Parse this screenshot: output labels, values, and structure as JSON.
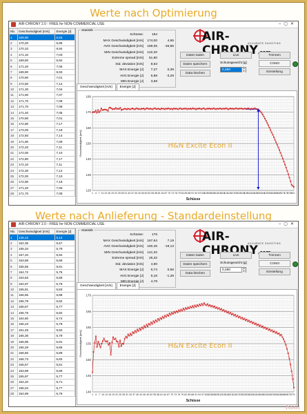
{
  "heading_top": "Werte nach Optimierung",
  "heading_bottom": "Werte nach Anlieferung - Standardeinstellung",
  "watermark": "Rodi",
  "windows": [
    {
      "title": "AIR-CHRONY 2.0 - FREE for NON-COMMERCIAL USE",
      "table": {
        "headers": [
          "Nb.",
          "Geschwindigkeit [m/s]",
          "Energie [J]"
        ],
        "rows": [
          [
            "1",
            "169,90",
            "6,93"
          ],
          [
            "2",
            "170,20",
            "6,95"
          ],
          [
            "3",
            "170,10",
            "6,94"
          ],
          [
            "4",
            "171,10",
            "7,03"
          ],
          [
            "5",
            "169,60",
            "6,92"
          ],
          [
            "6",
            "171,40",
            "7,05"
          ],
          [
            "7",
            "169,90",
            "6,93"
          ],
          [
            "8",
            "170,90",
            "7,01"
          ],
          [
            "9",
            "172,50",
            "7,14"
          ],
          [
            "10",
            "171,30",
            "7,04"
          ],
          [
            "11",
            "171,60",
            "7,07"
          ],
          [
            "12",
            "171,70",
            "7,08"
          ],
          [
            "13",
            "171,70",
            "7,08"
          ],
          [
            "14",
            "171,40",
            "7,05"
          ],
          [
            "15",
            "170,90",
            "7,01"
          ],
          [
            "16",
            "172,80",
            "7,17"
          ],
          [
            "17",
            "173,00",
            "7,18"
          ],
          [
            "18",
            "172,50",
            "7,14"
          ],
          [
            "19",
            "171,90",
            "7,09"
          ],
          [
            "20",
            "172,20",
            "7,11"
          ],
          [
            "21",
            "172,00",
            "7,10"
          ],
          [
            "22",
            "172,80",
            "7,17"
          ],
          [
            "23",
            "172,10",
            "7,11"
          ],
          [
            "24",
            "172,30",
            "7,12"
          ],
          [
            "25",
            "172,00",
            "7,10"
          ],
          [
            "26",
            "172,90",
            "7,18"
          ],
          [
            "27",
            "171,40",
            "7,05"
          ],
          [
            "28",
            "171,70",
            "7,08"
          ]
        ]
      },
      "stats": {
        "legend": "Statistik",
        "rows": [
          {
            "label": "Schüsse:",
            "value": "184",
            "extra": ""
          },
          {
            "label": "MAX Geschwindigkeit [m/s]",
            "value": "174,00",
            "extra": "4,95"
          },
          {
            "label": "AVG Geschwindigkeit [m/s]",
            "value": "169,05",
            "extra": "-46,85"
          },
          {
            "label": "MIN Geschwindigkeit [m/s]",
            "value": "122,20",
            "extra": ""
          },
          {
            "label": "Extreme spread [m/s]",
            "value": "51,80",
            "extra": ""
          },
          {
            "label": "Std. deviation [m/s]",
            "value": "8,63",
            "extra": ""
          },
          {
            "label": "MAX Energie [J]",
            "value": "7,27",
            "extra": "0,39"
          },
          {
            "label": "AVG Energie [J]",
            "value": "6,88",
            "extra": "-3,29"
          },
          {
            "label": "MIN Energie [J]",
            "value": "3,59",
            "extra": ""
          }
        ]
      },
      "buttons": {
        "load": "Daten laden",
        "save": "Daten speichern",
        "delete": "Data löschen",
        "live": "Live",
        "disconnect": "Trennen",
        "com": "COM3",
        "settings": "Einstellung"
      },
      "weight_label": "Schussgewicht [g]",
      "weight_value": "0,480",
      "tabs": [
        "Geschwindigkeit [m/s]",
        "Energie [J]"
      ],
      "chart_data": {
        "type": "line",
        "title": "H&N Excite Econ II",
        "xlabel": "Schüsse",
        "ylabel": "Geschwindigkeit [m/s]",
        "ylim": [
          120,
          180
        ],
        "yticks": [
          120,
          130,
          140,
          150,
          160,
          170,
          180
        ],
        "x_range": [
          1,
          184
        ],
        "series": [
          {
            "values": [
              169.9,
              170.2,
              170.1,
              171.1,
              169.6,
              171.4,
              169.9,
              170.9,
              172.5,
              171.3,
              171.6,
              171.7,
              171.7,
              171.4,
              170.9,
              172.8,
              173.0,
              172.5,
              171.9,
              172.2,
              172.0,
              172.8,
              172.1,
              172.3,
              172.0,
              172.9,
              171.4,
              171.7,
              172.0,
              172.3,
              172.1,
              171.8,
              172.4,
              172.0,
              171.9,
              172.2,
              172.5,
              172.1,
              171.8,
              172.3,
              172.6,
              172.0,
              172.2,
              171.9,
              172.4,
              172.1,
              172.5,
              171.8,
              172.2,
              172.6,
              172.3,
              172.0,
              172.4,
              172.1,
              171.9,
              172.3,
              172.6,
              172.2,
              172.0,
              172.4,
              172.1,
              171.8,
              172.5,
              172.2,
              172.3,
              171.9,
              172.4,
              172.1,
              172.6,
              172.2,
              172.0,
              172.3,
              171.8,
              172.5,
              172.1,
              172.4,
              172.2,
              171.9,
              172.3,
              172.6,
              172.1,
              172.0,
              172.4,
              172.2,
              172.5,
              171.9,
              172.3,
              172.1,
              172.4,
              172.0,
              172.6,
              172.2,
              172.3,
              171.8,
              172.4,
              172.1,
              172.5,
              172.2,
              172.0,
              172.3,
              172.6,
              172.1,
              171.9,
              172.4,
              172.2,
              172.5,
              172.0,
              172.3,
              172.1,
              172.6,
              172.2,
              171.9,
              172.4,
              172.1,
              172.3,
              172.5,
              172.0,
              172.2,
              172.4,
              172.1,
              172.6,
              172.3,
              171.8,
              172.2,
              172.5,
              172.1,
              172.4,
              172.0,
              172.3,
              172.6,
              172.2,
              172.1,
              172.4,
              172.3,
              172.5,
              172.0,
              172.2,
              172.4,
              172.1,
              172.3,
              172.5,
              172.2,
              171.9,
              172.4,
              172.0,
              172.3,
              172.6,
              172.1,
              172.0,
              171.8,
              171.2,
              170.4,
              169.6,
              168.5,
              167.2,
              165.9,
              164.6,
              163.1,
              161.7,
              160.2,
              158.6,
              157.1,
              155.6,
              154.0,
              152.4,
              150.8,
              149.2,
              147.5,
              145.8,
              144.0,
              142.2,
              140.4,
              138.5,
              136.6,
              134.6,
              132.5,
              130.4,
              128.2,
              125.9,
              123.5,
              122.8,
              122.2
            ]
          }
        ],
        "marker_x": 150,
        "annotation_color": "#0000cc",
        "line_color": "#cc0000"
      }
    },
    {
      "title": "AIR-CHRONY 2.0 - FREE for NON-COMMERCIAL USE",
      "table": {
        "headers": [
          "Nb.",
          "Geschwindigkeit [m/s]",
          "Energie [J]"
        ],
        "rows": [
          [
            "1",
            "146,12",
            "5,12"
          ],
          [
            "2",
            "152,35",
            "5,57"
          ],
          [
            "3",
            "155,34",
            "5,79"
          ],
          [
            "4",
            "157,34",
            "5,94"
          ],
          [
            "5",
            "153,88",
            "5,68"
          ],
          [
            "6",
            "155,55",
            "5,81"
          ],
          [
            "7",
            "154,72",
            "5,75"
          ],
          [
            "8",
            "153,83",
            "5,68"
          ],
          [
            "9",
            "154,97",
            "5,76"
          ],
          [
            "10",
            "155,81",
            "5,83"
          ],
          [
            "11",
            "156,55",
            "5,88"
          ],
          [
            "12",
            "155,78",
            "5,82"
          ],
          [
            "13",
            "155,57",
            "5,77"
          ],
          [
            "14",
            "155,76",
            "5,82"
          ],
          [
            "15",
            "154,60",
            "5,74"
          ],
          [
            "16",
            "155,23",
            "5,78"
          ],
          [
            "17",
            "151,45",
            "5,50"
          ],
          [
            "18",
            "155,36",
            "5,79"
          ],
          [
            "19",
            "156,95",
            "5,91"
          ],
          [
            "20",
            "156,29",
            "5,86"
          ],
          [
            "21",
            "156,60",
            "5,89"
          ],
          [
            "22",
            "155,73",
            "5,82"
          ],
          [
            "23",
            "155,57",
            "5,81"
          ],
          [
            "24",
            "153,99",
            "5,69"
          ],
          [
            "25",
            "155,97",
            "5,77"
          ],
          [
            "26",
            "154,20",
            "5,71"
          ],
          [
            "27",
            "155,04",
            "5,77"
          ],
          [
            "28",
            "154,89",
            "5,76"
          ]
        ]
      },
      "stats": {
        "legend": "Statistik",
        "rows": [
          {
            "label": "Schüsse:",
            "value": "176",
            "extra": ""
          },
          {
            "label": "MAX Geschwindigkeit [m/s]",
            "value": "167,64",
            "extra": "7,19"
          },
          {
            "label": "AVG Geschwindigkeit [m/s]",
            "value": "160,45",
            "extra": "-19,13"
          },
          {
            "label": "MIN Geschwindigkeit [m/s]",
            "value": "141,32",
            "extra": ""
          },
          {
            "label": "Extreme spread [m/s]",
            "value": "26,32",
            "extra": ""
          },
          {
            "label": "Std. deviation [m/s]",
            "value": "4,90",
            "extra": ""
          },
          {
            "label": "MAX Energie [J]",
            "value": "6,74",
            "extra": "0,56"
          },
          {
            "label": "AVG Energie [J]",
            "value": "6,18",
            "extra": "-1,39"
          },
          {
            "label": "MIN Energie [J]",
            "value": "4,79",
            "extra": ""
          }
        ]
      },
      "buttons": {
        "load": "Daten laden",
        "save": "Daten speichern",
        "delete": "Data löschen",
        "live": "Live",
        "disconnect": "Trennen",
        "com": "COM3",
        "settings": "Einstellung"
      },
      "weight_label": "Schussgewicht [g]",
      "weight_value": "0,480",
      "tabs": [
        "Geschwindigkeit [m/s]",
        "Energie [J]"
      ],
      "chart_data": {
        "type": "line",
        "title": "H&N Excite Econ II",
        "xlabel": "Schüsse",
        "ylabel": "Geschwindigkeit [m/s]",
        "ylim": [
          140,
          170
        ],
        "yticks": [
          140,
          145,
          150,
          155,
          160,
          165,
          170
        ],
        "x_range": [
          1,
          176
        ],
        "series": [
          {
            "values": [
              146.1,
              152.4,
              155.3,
              157.3,
              153.9,
              155.6,
              154.7,
              153.8,
              155.0,
              155.8,
              156.6,
              155.8,
              155.6,
              155.8,
              154.6,
              155.2,
              151.5,
              155.4,
              157.0,
              156.3,
              156.6,
              155.7,
              155.6,
              154.0,
              156.0,
              154.2,
              155.0,
              154.9,
              156.5,
              157.2,
              156.8,
              157.9,
              157.4,
              158.1,
              157.6,
              158.6,
              158.2,
              159.0,
              158.5,
              159.4,
              158.9,
              159.7,
              159.2,
              160.1,
              159.6,
              160.5,
              160.0,
              160.9,
              160.3,
              161.2,
              160.8,
              161.6,
              161.1,
              162.0,
              161.5,
              162.3,
              161.8,
              162.7,
              162.2,
              163.0,
              162.6,
              163.4,
              162.9,
              163.7,
              163.3,
              164.0,
              163.6,
              164.4,
              163.9,
              164.6,
              164.2,
              164.9,
              164.5,
              165.1,
              164.7,
              165.4,
              165.0,
              165.6,
              165.2,
              165.9,
              165.4,
              166.1,
              165.7,
              166.3,
              165.9,
              166.5,
              166.1,
              166.7,
              166.2,
              166.9,
              166.4,
              167.0,
              166.6,
              167.2,
              166.8,
              167.4,
              166.9,
              167.6,
              167.1,
              166.9,
              167.3,
              166.7,
              167.0,
              166.5,
              166.8,
              166.3,
              166.6,
              166.0,
              166.3,
              165.8,
              166.1,
              165.5,
              165.8,
              165.2,
              165.5,
              164.9,
              165.2,
              164.6,
              164.9,
              164.3,
              164.6,
              164.0,
              164.3,
              163.7,
              164.0,
              163.4,
              163.7,
              163.1,
              163.4,
              162.8,
              163.1,
              162.5,
              162.8,
              162.2,
              162.5,
              161.9,
              162.2,
              161.6,
              161.9,
              161.3,
              161.6,
              161.0,
              161.3,
              160.7,
              161.0,
              160.4,
              160.7,
              160.1,
              160.4,
              159.8,
              160.1,
              159.5,
              159.8,
              159.2,
              159.5,
              158.9,
              159.2,
              158.6,
              158.9,
              158.3,
              158.6,
              158.0,
              158.2,
              157.5,
              157.8,
              157.0,
              156.4,
              155.6,
              154.6,
              153.4,
              152.0,
              150.4,
              148.5,
              146.4,
              144.0,
              141.3
            ]
          }
        ],
        "marker_x": null,
        "annotation_color": "#0000cc",
        "line_color": "#cc0000"
      }
    }
  ]
}
